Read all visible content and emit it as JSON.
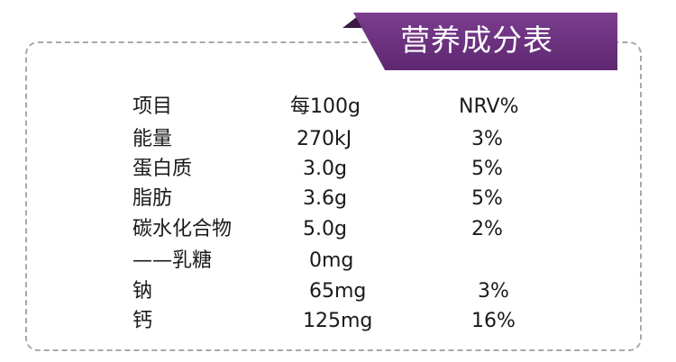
{
  "banner": {
    "title": "营养成分表"
  },
  "table": {
    "header": {
      "name": "项目",
      "amount": "每100g",
      "nrv": "NRV%"
    },
    "rows": [
      {
        "name": "能量",
        "amount": " 270kJ",
        "nrv": "  3%"
      },
      {
        "name": "蛋白质",
        "amount": "  3.0g",
        "nrv": "  5%"
      },
      {
        "name": "脂肪",
        "amount": "  3.6g",
        "nrv": "  5%"
      },
      {
        "name": "碳水化合物",
        "amount": "  5.0g",
        "nrv": "  2%"
      },
      {
        "name": "——乳糖",
        "amount": "   0mg",
        "nrv": ""
      },
      {
        "name": "钠",
        "amount": "   65mg",
        "nrv": "   3%"
      },
      {
        "name": "钙",
        "amount": "  125mg",
        "nrv": "  16%"
      }
    ]
  }
}
